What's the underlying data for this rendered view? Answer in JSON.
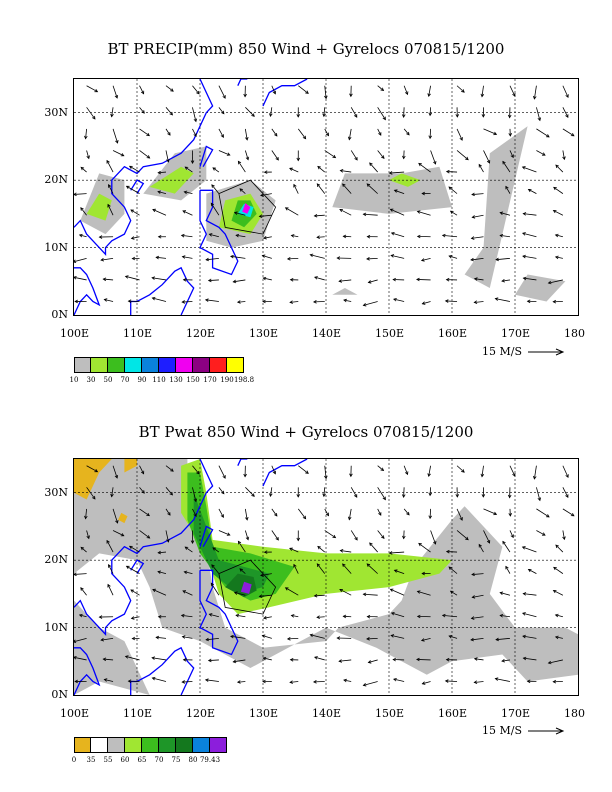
{
  "panel1": {
    "title": "BT PRECIP(mm) 850 Wind + Gyrelocs 070815/1200",
    "lat_labels": [
      "30N",
      "20N",
      "10N",
      "0N"
    ],
    "lon_labels": [
      "100E",
      "110E",
      "120E",
      "130E",
      "140E",
      "150E",
      "160E",
      "170E",
      "180"
    ],
    "scale_label": "15 M/S",
    "legend": {
      "colors": [
        "#bebebe",
        "#a0e632",
        "#3cbe1e",
        "#00e6e6",
        "#0a82dc",
        "#1e1eff",
        "#f000f0",
        "#8c0082",
        "#ff1e1e",
        "#ffff00"
      ],
      "labels": [
        "10",
        "30",
        "50",
        "70",
        "90",
        "110",
        "130",
        "150",
        "170",
        "190",
        "198.8"
      ]
    }
  },
  "panel2": {
    "title": "BT Pwat 850 Wind + Gyrelocs 070815/1200",
    "lat_labels": [
      "30N",
      "20N",
      "10N",
      "0N"
    ],
    "lon_labels": [
      "100E",
      "110E",
      "120E",
      "130E",
      "140E",
      "150E",
      "160E",
      "170E",
      "180"
    ],
    "scale_label": "15 M/S",
    "legend": {
      "colors": [
        "#e6b41e",
        "#ffffff",
        "#bebebe",
        "#a0e632",
        "#3cbe1e",
        "#1e9628",
        "#14781e",
        "#0a82dc",
        "#8c1edc"
      ],
      "labels": [
        "0",
        "35",
        "55",
        "60",
        "65",
        "70",
        "75",
        "80",
        "79.43"
      ]
    }
  },
  "colors": {
    "coast": "#0000ff",
    "grid": "#000000",
    "vector": "#000000"
  }
}
